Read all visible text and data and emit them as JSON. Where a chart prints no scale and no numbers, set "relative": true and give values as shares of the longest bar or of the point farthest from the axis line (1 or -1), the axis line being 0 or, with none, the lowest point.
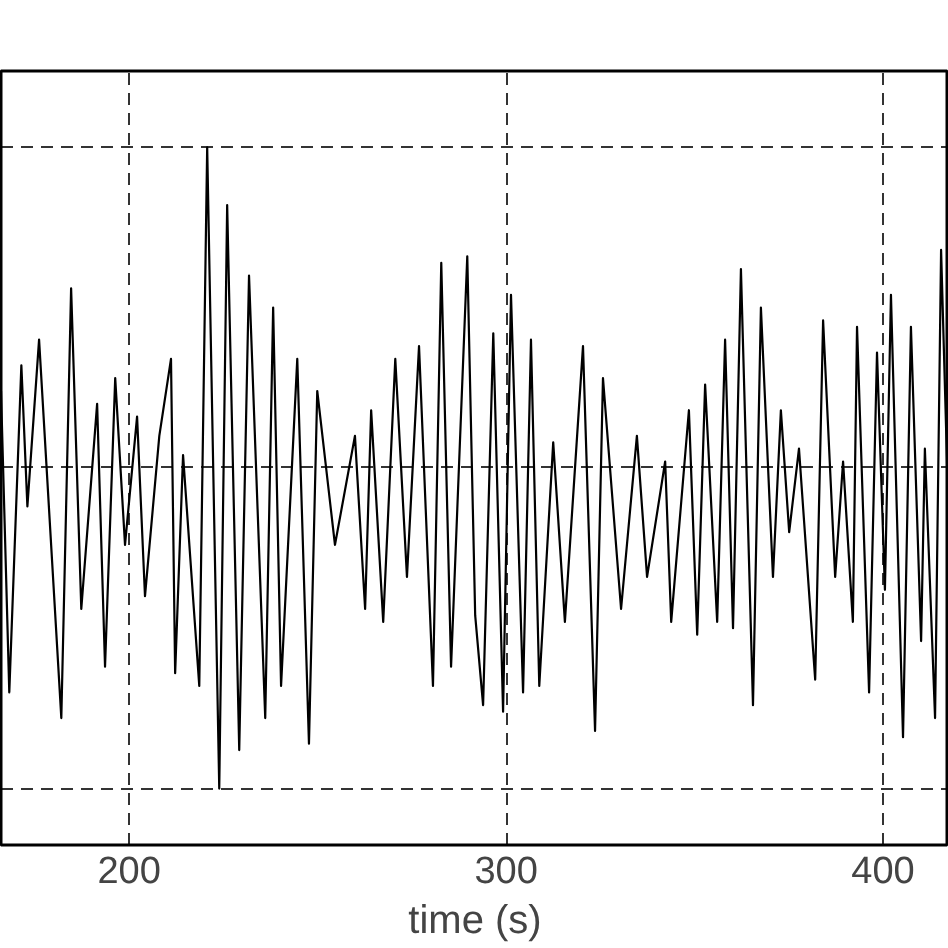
{
  "chart_data": {
    "type": "line",
    "xlabel": "time (s)",
    "relative": true,
    "grid": true,
    "xlim": [
      166,
      417.5
    ],
    "xticks": [
      200,
      300,
      400
    ],
    "x": [
      166.0,
      168.2,
      171.4,
      173.0,
      176.1,
      182.0,
      184.6,
      187.3,
      191.5,
      193.6,
      196.3,
      198.9,
      202.1,
      204.2,
      208.0,
      211.1,
      212.2,
      214.3,
      218.6,
      220.7,
      223.9,
      226.0,
      229.2,
      231.8,
      236.1,
      238.2,
      240.3,
      244.6,
      247.7,
      249.9,
      254.6,
      259.9,
      262.6,
      264.2,
      267.4,
      270.6,
      273.7,
      276.9,
      280.6,
      282.8,
      285.4,
      289.7,
      291.8,
      293.9,
      296.6,
      299.2,
      301.3,
      304.5,
      306.6,
      308.8,
      312.5,
      315.6,
      320.4,
      323.6,
      325.7,
      330.5,
      334.7,
      337.4,
      342.2,
      343.8,
      348.5,
      350.7,
      352.8,
      356.0,
      358.1,
      360.2,
      362.3,
      365.5,
      367.6,
      370.8,
      372.9,
      375.1,
      377.7,
      382.0,
      384.1,
      387.3,
      389.4,
      392.0,
      393.1,
      396.3,
      398.4,
      400.5,
      402.1,
      405.3,
      407.4,
      410.1,
      411.1,
      413.8,
      415.4,
      417.5
    ],
    "series": [
      {
        "color": "#000000",
        "values": [
          0.62,
          0.15,
          0.66,
          0.44,
          0.7,
          0.11,
          0.78,
          0.28,
          0.6,
          0.19,
          0.64,
          0.38,
          0.58,
          0.3,
          0.55,
          0.67,
          0.18,
          0.52,
          0.16,
          1.0,
          0,
          0.91,
          0.06,
          0.8,
          0.11,
          0.75,
          0.16,
          0.67,
          0.07,
          0.62,
          0.38,
          0.55,
          0.28,
          0.59,
          0.26,
          0.67,
          0.33,
          0.69,
          0.16,
          0.82,
          0.19,
          0.83,
          0.27,
          0.13,
          0.71,
          0.12,
          0.77,
          0.15,
          0.7,
          0.16,
          0.54,
          0.26,
          0.69,
          0.09,
          0.64,
          0.28,
          0.55,
          0.33,
          0.51,
          0.26,
          0.59,
          0.24,
          0.63,
          0.26,
          0.7,
          0.25,
          0.81,
          0.13,
          0.75,
          0.33,
          0.59,
          0.4,
          0.53,
          0.17,
          0.73,
          0.33,
          0.51,
          0.26,
          0.72,
          0.15,
          0.68,
          0.31,
          0.77,
          0.08,
          0.72,
          0.23,
          0.53,
          0.11,
          0.84,
          0.4
        ]
      }
    ]
  }
}
